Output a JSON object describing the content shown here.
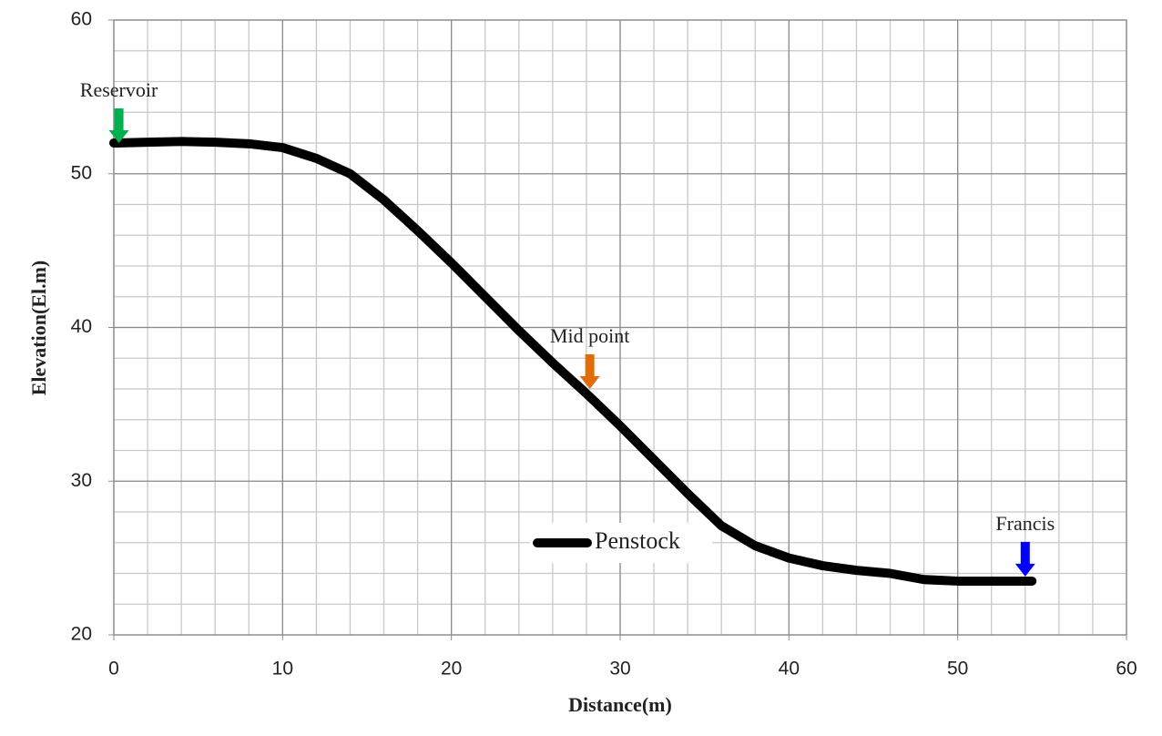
{
  "chart_data": {
    "type": "line",
    "x_label": "Distance(m)",
    "y_label": "Elevation(El.m)",
    "xlim": [
      0,
      60
    ],
    "ylim": [
      20,
      60
    ],
    "xticks": [
      0,
      10,
      20,
      30,
      40,
      50,
      60
    ],
    "yticks": [
      20,
      30,
      40,
      50,
      60
    ],
    "grid": true,
    "minor_grid_step": 2,
    "series": [
      {
        "name": "Penstock",
        "color": "#000000",
        "x": [
          0,
          2,
          4,
          6,
          8,
          10,
          12,
          14,
          16,
          18,
          20,
          22,
          24,
          26,
          28,
          30,
          32,
          34,
          36,
          38,
          40,
          42,
          44,
          46,
          48,
          50,
          52,
          54.4
        ],
        "values": [
          52,
          52.05,
          52.1,
          52.05,
          51.95,
          51.7,
          51,
          50,
          48.3,
          46.3,
          44.2,
          42,
          39.8,
          37.7,
          35.7,
          33.6,
          31.4,
          29.2,
          27.1,
          25.8,
          25,
          24.5,
          24.2,
          24,
          23.6,
          23.5,
          23.5,
          23.5
        ]
      }
    ],
    "annotations": [
      {
        "text": "Reservoir",
        "x": 0.3,
        "y": 52,
        "color": "#00b050"
      },
      {
        "text": "Mid point",
        "x": 28.2,
        "y": 36,
        "color": "#e36c0a"
      },
      {
        "text": "Francis",
        "x": 54,
        "y": 23.8,
        "color": "#0000ff"
      }
    ]
  }
}
